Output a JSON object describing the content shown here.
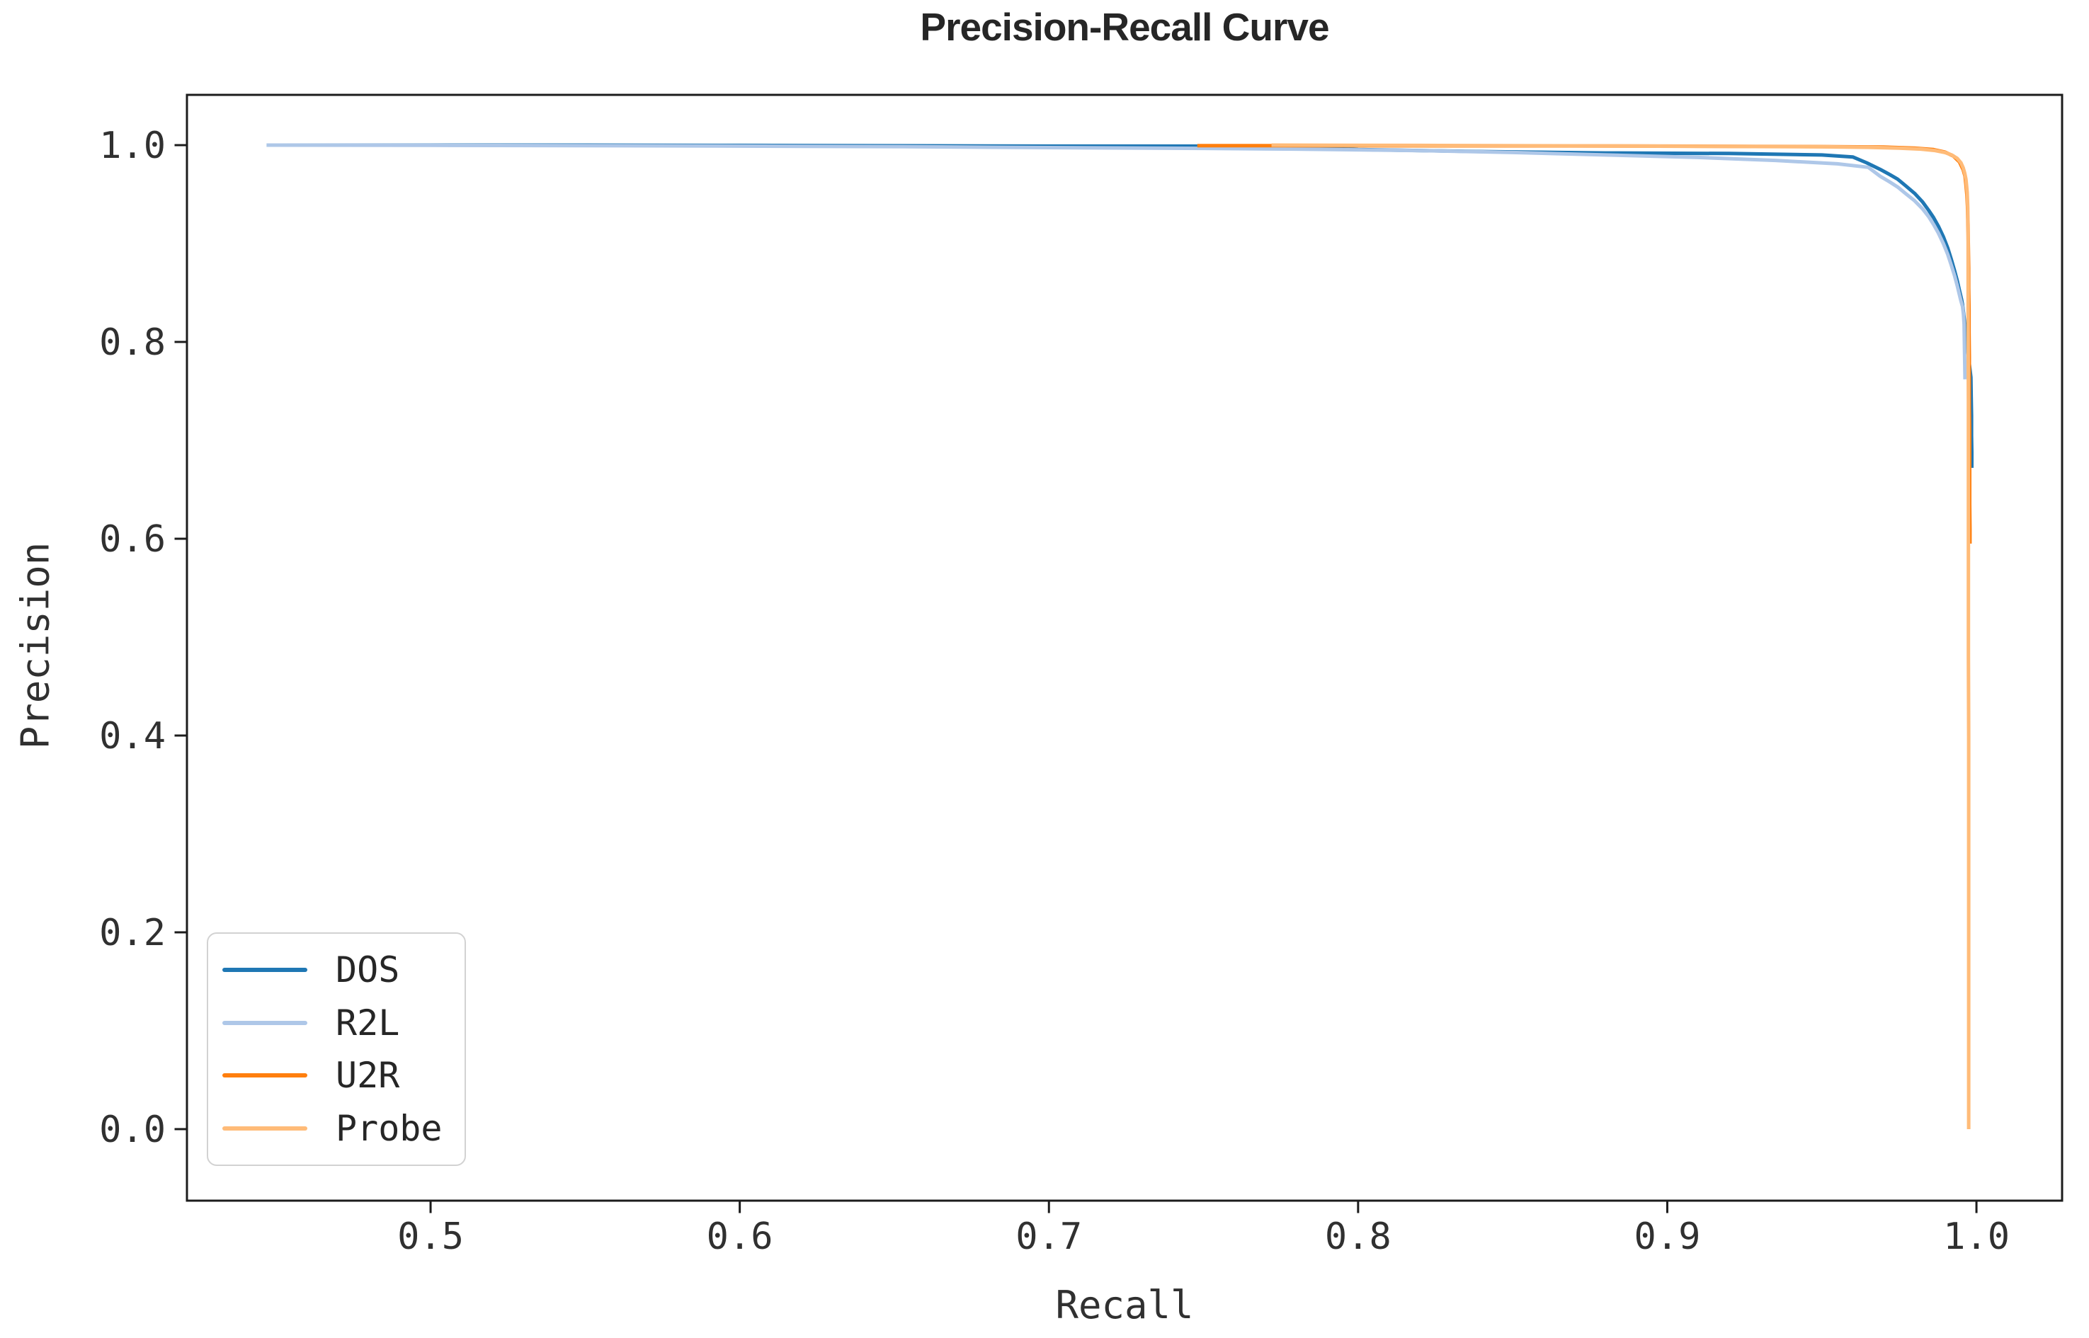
{
  "chart_data": {
    "type": "line",
    "title": "Precision-Recall Curve",
    "grid": false,
    "legend_position": "lower left",
    "axis_color": "#1c1c1c",
    "tick_length": 16,
    "x_axis": {
      "label": "Recall",
      "range": [
        0.4212,
        1.0277
      ],
      "ticks": [
        {
          "value": 0.5,
          "label": "0.5"
        },
        {
          "value": 0.6,
          "label": "0.6"
        },
        {
          "value": 0.7,
          "label": "0.7"
        },
        {
          "value": 0.8,
          "label": "0.8"
        },
        {
          "value": 0.9,
          "label": "0.9"
        },
        {
          "value": 1.0,
          "label": "1.0"
        }
      ]
    },
    "y_axis": {
      "label": "Precision",
      "range": [
        -0.0727,
        1.0511
      ],
      "ticks": [
        {
          "value": 0.0,
          "label": "0.0"
        },
        {
          "value": 0.2,
          "label": "0.2"
        },
        {
          "value": 0.4,
          "label": "0.4"
        },
        {
          "value": 0.6,
          "label": "0.6"
        },
        {
          "value": 0.8,
          "label": "0.8"
        },
        {
          "value": 1.0,
          "label": "1.0"
        }
      ]
    },
    "series": [
      {
        "name": "DOS",
        "color": "#1f77b4",
        "linewidth": 5,
        "points": [
          [
            0.447,
            1.0
          ],
          [
            0.5,
            1.0
          ],
          [
            0.55,
            1.0
          ],
          [
            0.6,
            0.9997
          ],
          [
            0.65,
            0.9994
          ],
          [
            0.7,
            0.999
          ],
          [
            0.75,
            0.999
          ],
          [
            0.78,
            0.998
          ],
          [
            0.8,
            0.9955
          ],
          [
            0.84,
            0.9935
          ],
          [
            0.88,
            0.992
          ],
          [
            0.92,
            0.9915
          ],
          [
            0.95,
            0.99
          ],
          [
            0.96,
            0.988
          ],
          [
            0.9645,
            0.982
          ],
          [
            0.9688,
            0.9755
          ],
          [
            0.972,
            0.97
          ],
          [
            0.9745,
            0.9655
          ],
          [
            0.977,
            0.959
          ],
          [
            0.98,
            0.951
          ],
          [
            0.9825,
            0.9425
          ],
          [
            0.9845,
            0.934
          ],
          [
            0.9861,
            0.9265
          ],
          [
            0.9877,
            0.9175
          ],
          [
            0.9893,
            0.907
          ],
          [
            0.9907,
            0.8955
          ],
          [
            0.9918,
            0.8845
          ],
          [
            0.9929,
            0.8725
          ],
          [
            0.9938,
            0.862
          ],
          [
            0.9945,
            0.8525
          ],
          [
            0.9952,
            0.843
          ],
          [
            0.9955,
            0.838
          ],
          [
            0.996,
            0.825
          ],
          [
            0.9965,
            0.81
          ],
          [
            0.997,
            0.795
          ],
          [
            0.9976,
            0.78
          ],
          [
            0.9982,
            0.764
          ],
          [
            0.9983,
            0.745
          ],
          [
            0.9984,
            0.725
          ],
          [
            0.9984,
            0.705
          ],
          [
            0.9985,
            0.688
          ],
          [
            0.9985,
            0.672
          ]
        ]
      },
      {
        "name": "R2L",
        "color": "#aec7e8",
        "linewidth": 5,
        "points": [
          [
            0.447,
            1.0
          ],
          [
            0.5,
            0.9998
          ],
          [
            0.55,
            0.9995
          ],
          [
            0.6,
            0.999
          ],
          [
            0.65,
            0.9985
          ],
          [
            0.7,
            0.9975
          ],
          [
            0.75,
            0.9967
          ],
          [
            0.78,
            0.996
          ],
          [
            0.82,
            0.9945
          ],
          [
            0.85,
            0.9925
          ],
          [
            0.88,
            0.99
          ],
          [
            0.91,
            0.9875
          ],
          [
            0.935,
            0.9845
          ],
          [
            0.955,
            0.981
          ],
          [
            0.965,
            0.9775
          ],
          [
            0.9688,
            0.9685
          ],
          [
            0.972,
            0.9625
          ],
          [
            0.9745,
            0.9575
          ],
          [
            0.977,
            0.951
          ],
          [
            0.98,
            0.9435
          ],
          [
            0.9825,
            0.9355
          ],
          [
            0.9845,
            0.9275
          ],
          [
            0.9861,
            0.9195
          ],
          [
            0.9877,
            0.9105
          ],
          [
            0.9893,
            0.9
          ],
          [
            0.9907,
            0.889
          ],
          [
            0.9918,
            0.8785
          ],
          [
            0.9929,
            0.8675
          ],
          [
            0.9938,
            0.857
          ],
          [
            0.9945,
            0.848
          ],
          [
            0.995,
            0.8415
          ],
          [
            0.9955,
            0.836
          ],
          [
            0.9958,
            0.828
          ],
          [
            0.996,
            0.818
          ],
          [
            0.9961,
            0.8
          ],
          [
            0.9962,
            0.78
          ],
          [
            0.9963,
            0.762
          ]
        ]
      },
      {
        "name": "U2R",
        "color": "#ff7f0e",
        "linewidth": 5,
        "points": [
          [
            0.748,
            0.9995
          ],
          [
            0.8,
            0.9994
          ],
          [
            0.86,
            0.9992
          ],
          [
            0.9,
            0.999
          ],
          [
            0.95,
            0.9985
          ],
          [
            0.97,
            0.998
          ],
          [
            0.98,
            0.997
          ],
          [
            0.9861,
            0.9955
          ],
          [
            0.9898,
            0.993
          ],
          [
            0.9925,
            0.989
          ],
          [
            0.9945,
            0.983
          ],
          [
            0.9957,
            0.975
          ],
          [
            0.9963,
            0.9685
          ],
          [
            0.9966,
            0.96
          ],
          [
            0.9969,
            0.95
          ],
          [
            0.9971,
            0.938
          ],
          [
            0.9972,
            0.925
          ],
          [
            0.9973,
            0.91
          ],
          [
            0.9974,
            0.893
          ],
          [
            0.9975,
            0.875
          ],
          [
            0.9975,
            0.855
          ],
          [
            0.9976,
            0.833
          ],
          [
            0.9976,
            0.81
          ],
          [
            0.9977,
            0.785
          ],
          [
            0.9977,
            0.76
          ],
          [
            0.9977,
            0.735
          ],
          [
            0.9978,
            0.71
          ],
          [
            0.9978,
            0.685
          ],
          [
            0.9978,
            0.66
          ],
          [
            0.9978,
            0.635
          ],
          [
            0.9979,
            0.61
          ],
          [
            0.9979,
            0.595
          ]
        ]
      },
      {
        "name": "Probe",
        "color": "#ffbb78",
        "linewidth": 5,
        "points": [
          [
            0.772,
            1.0
          ],
          [
            0.82,
            0.9997
          ],
          [
            0.87,
            0.9993
          ],
          [
            0.91,
            0.9988
          ],
          [
            0.95,
            0.9983
          ],
          [
            0.965,
            0.9978
          ],
          [
            0.975,
            0.997
          ],
          [
            0.982,
            0.996
          ],
          [
            0.9866,
            0.9945
          ],
          [
            0.9898,
            0.9925
          ],
          [
            0.992,
            0.99
          ],
          [
            0.9938,
            0.9865
          ],
          [
            0.995,
            0.982
          ],
          [
            0.9957,
            0.977
          ],
          [
            0.9962,
            0.9715
          ],
          [
            0.9966,
            0.9655
          ],
          [
            0.9968,
            0.959
          ],
          [
            0.997,
            0.952
          ],
          [
            0.9971,
            0.9445
          ],
          [
            0.9972,
            0.9365
          ],
          [
            0.9972,
            0.928
          ],
          [
            0.9973,
            0.919
          ],
          [
            0.9973,
            0.88
          ],
          [
            0.9973,
            0.82
          ],
          [
            0.9974,
            0.74
          ],
          [
            0.9974,
            0.65
          ],
          [
            0.9974,
            0.55
          ],
          [
            0.9974,
            0.48
          ],
          [
            0.9975,
            0.4
          ],
          [
            0.9975,
            0.3
          ],
          [
            0.9975,
            0.2
          ],
          [
            0.9975,
            0.1
          ],
          [
            0.9975,
            0.0
          ]
        ]
      }
    ]
  }
}
